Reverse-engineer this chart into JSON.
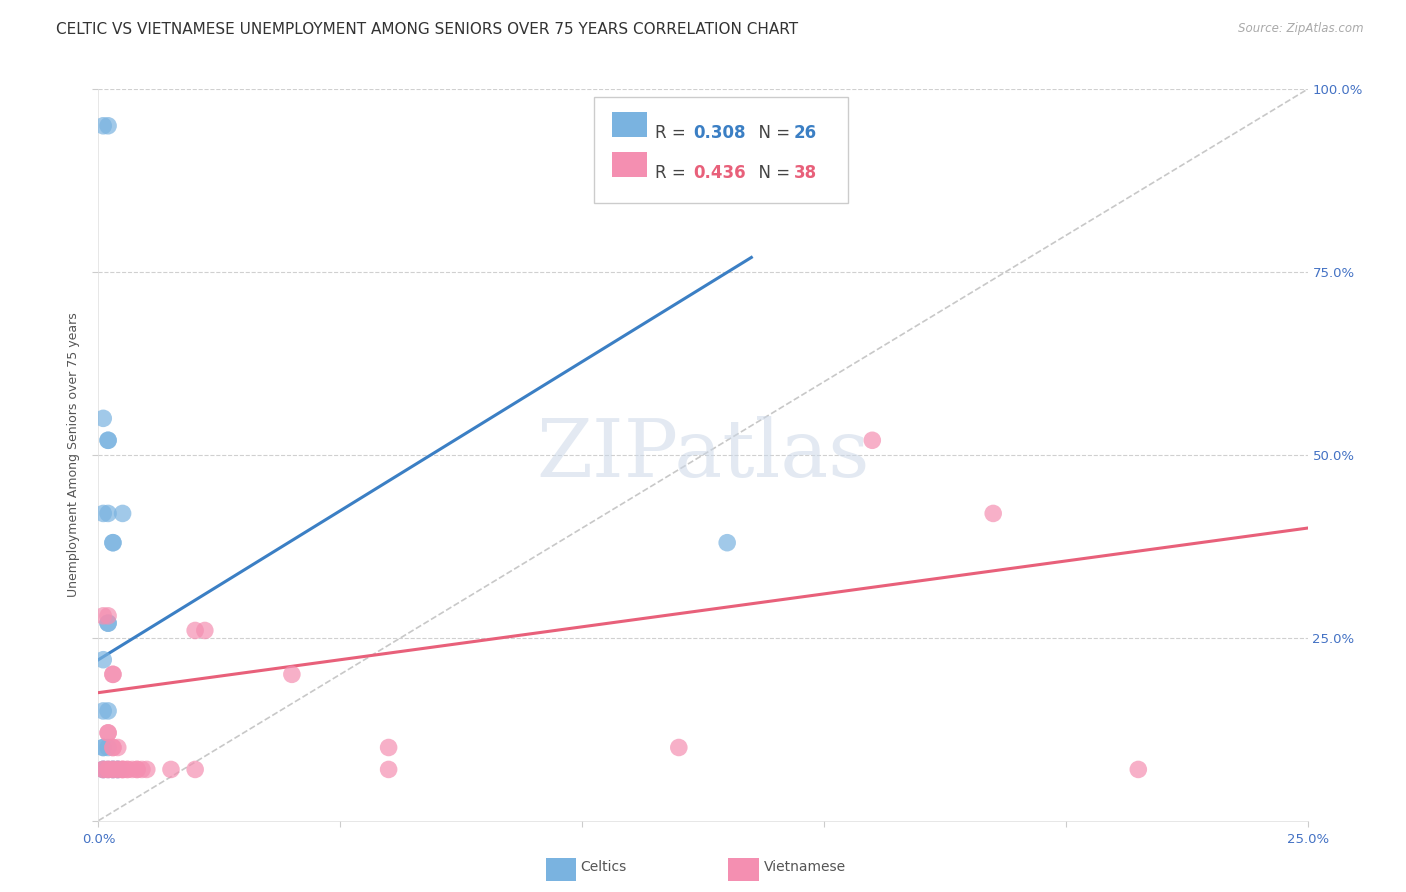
{
  "title": "CELTIC VS VIETNAMESE UNEMPLOYMENT AMONG SENIORS OVER 75 YEARS CORRELATION CHART",
  "source": "Source: ZipAtlas.com",
  "ylabel": "Unemployment Among Seniors over 75 years",
  "xlim": [
    0.0,
    0.25
  ],
  "ylim": [
    0.0,
    1.0
  ],
  "xticks": [
    0.0,
    0.05,
    0.1,
    0.15,
    0.2,
    0.25
  ],
  "yticks": [
    0.0,
    0.25,
    0.5,
    0.75,
    1.0
  ],
  "xtick_labels": [
    "0.0%",
    "",
    "",
    "",
    "",
    "25.0%"
  ],
  "ytick_labels_right": [
    "",
    "25.0%",
    "50.0%",
    "75.0%",
    "100.0%"
  ],
  "background_color": "#ffffff",
  "celtics_color": "#7ab3e0",
  "vietnamese_color": "#f48fb1",
  "celtics_line_color": "#3b7fc4",
  "vietnamese_line_color": "#e8607a",
  "diagonal_color": "#c8c8c8",
  "legend_R_celtics": "0.308",
  "legend_N_celtics": "26",
  "legend_R_vietnamese": "0.436",
  "legend_N_vietnamese": "38",
  "celtics_points": [
    [
      0.001,
      0.95
    ],
    [
      0.002,
      0.95
    ],
    [
      0.001,
      0.55
    ],
    [
      0.002,
      0.52
    ],
    [
      0.002,
      0.52
    ],
    [
      0.001,
      0.42
    ],
    [
      0.002,
      0.42
    ],
    [
      0.001,
      0.22
    ],
    [
      0.003,
      0.38
    ],
    [
      0.003,
      0.38
    ],
    [
      0.002,
      0.27
    ],
    [
      0.002,
      0.27
    ],
    [
      0.001,
      0.15
    ],
    [
      0.002,
      0.15
    ],
    [
      0.001,
      0.1
    ],
    [
      0.001,
      0.1
    ],
    [
      0.002,
      0.1
    ],
    [
      0.001,
      0.07
    ],
    [
      0.001,
      0.07
    ],
    [
      0.002,
      0.07
    ],
    [
      0.003,
      0.07
    ],
    [
      0.003,
      0.07
    ],
    [
      0.004,
      0.07
    ],
    [
      0.004,
      0.07
    ],
    [
      0.13,
      0.38
    ],
    [
      0.005,
      0.42
    ]
  ],
  "vietnamese_points": [
    [
      0.001,
      0.28
    ],
    [
      0.002,
      0.28
    ],
    [
      0.003,
      0.2
    ],
    [
      0.003,
      0.2
    ],
    [
      0.002,
      0.12
    ],
    [
      0.002,
      0.12
    ],
    [
      0.003,
      0.1
    ],
    [
      0.003,
      0.1
    ],
    [
      0.004,
      0.1
    ],
    [
      0.001,
      0.07
    ],
    [
      0.001,
      0.07
    ],
    [
      0.002,
      0.07
    ],
    [
      0.002,
      0.07
    ],
    [
      0.003,
      0.07
    ],
    [
      0.003,
      0.07
    ],
    [
      0.004,
      0.07
    ],
    [
      0.004,
      0.07
    ],
    [
      0.005,
      0.07
    ],
    [
      0.005,
      0.07
    ],
    [
      0.005,
      0.07
    ],
    [
      0.006,
      0.07
    ],
    [
      0.006,
      0.07
    ],
    [
      0.007,
      0.07
    ],
    [
      0.008,
      0.07
    ],
    [
      0.008,
      0.07
    ],
    [
      0.009,
      0.07
    ],
    [
      0.01,
      0.07
    ],
    [
      0.015,
      0.07
    ],
    [
      0.02,
      0.07
    ],
    [
      0.02,
      0.26
    ],
    [
      0.022,
      0.26
    ],
    [
      0.04,
      0.2
    ],
    [
      0.06,
      0.1
    ],
    [
      0.12,
      0.1
    ],
    [
      0.16,
      0.52
    ],
    [
      0.185,
      0.42
    ],
    [
      0.215,
      0.07
    ],
    [
      0.06,
      0.07
    ]
  ],
  "celtics_line_x": [
    0.0,
    0.135
  ],
  "celtics_line_y": [
    0.22,
    0.77
  ],
  "vietnamese_line_x": [
    0.0,
    0.25
  ],
  "vietnamese_line_y": [
    0.175,
    0.4
  ],
  "diagonal_line_x": [
    0.0,
    0.25
  ],
  "diagonal_line_y": [
    0.0,
    1.0
  ],
  "grid_color": "#d0d0d0",
  "tick_color": "#4472c4",
  "title_fontsize": 11,
  "axis_label_fontsize": 9,
  "tick_fontsize": 9.5
}
